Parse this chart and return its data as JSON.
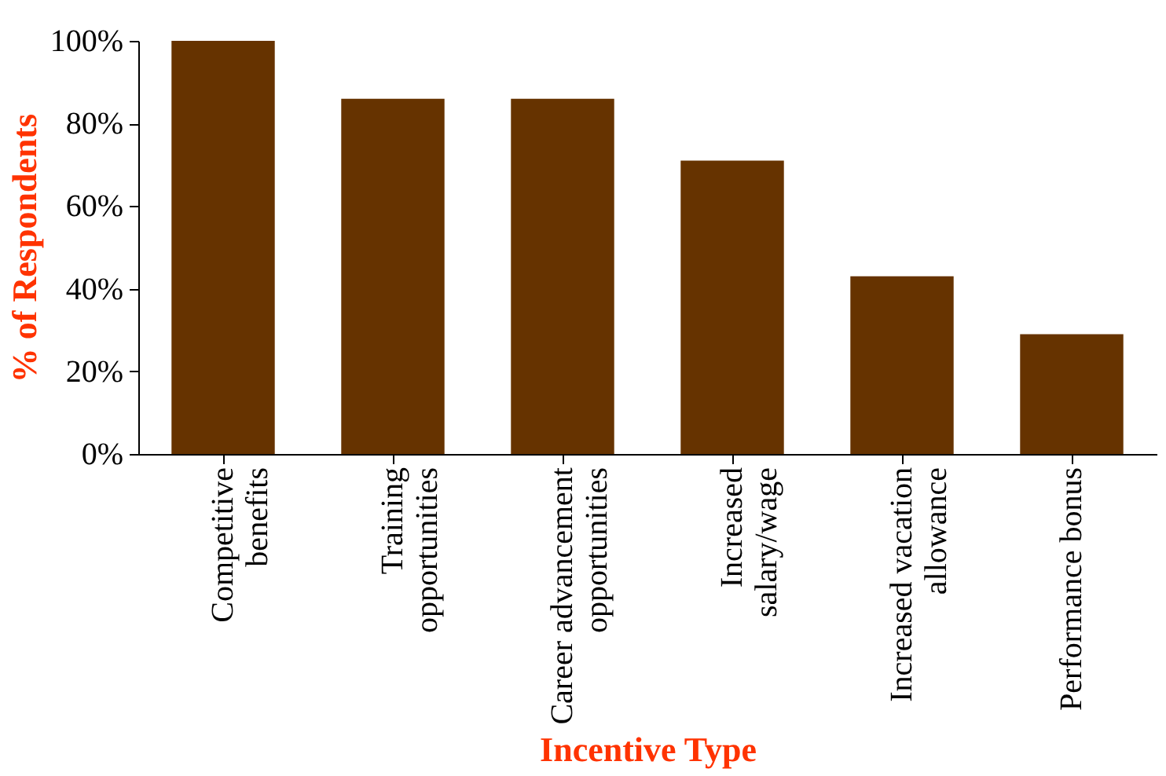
{
  "chart_data": {
    "type": "bar",
    "xlabel": "Incentive Type",
    "ylabel": "% of Respondents",
    "categories": [
      "Competitive benefits",
      "Training opportunities",
      "Career advancement opportunities",
      "Increased salary/wage",
      "Increased vacation allowance",
      "Performance bonus"
    ],
    "values": [
      100,
      86,
      86,
      71,
      43,
      29
    ],
    "color": "#663300",
    "ylim": [
      0,
      100
    ],
    "yticks": [
      {
        "value": 0,
        "label": "0%"
      },
      {
        "value": 20,
        "label": "20%"
      },
      {
        "value": 40,
        "label": "40%"
      },
      {
        "value": 60,
        "label": "60%"
      },
      {
        "value": 80,
        "label": "80%"
      },
      {
        "value": 100,
        "label": "100%"
      }
    ],
    "grid": false
  }
}
